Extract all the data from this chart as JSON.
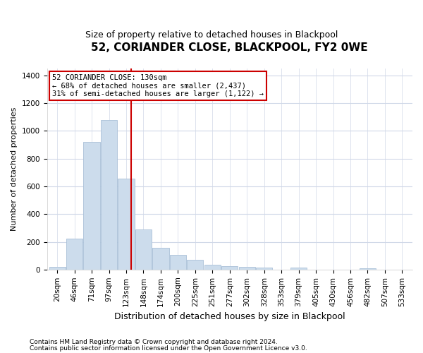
{
  "title": "52, CORIANDER CLOSE, BLACKPOOL, FY2 0WE",
  "subtitle": "Size of property relative to detached houses in Blackpool",
  "xlabel": "Distribution of detached houses by size in Blackpool",
  "ylabel": "Number of detached properties",
  "bar_color": "#ccdcec",
  "bar_edgecolor": "#aac0d8",
  "vline_color": "#cc0000",
  "vline_x": 4,
  "categories": [
    "20sqm",
    "46sqm",
    "71sqm",
    "97sqm",
    "123sqm",
    "148sqm",
    "174sqm",
    "200sqm",
    "225sqm",
    "251sqm",
    "277sqm",
    "302sqm",
    "328sqm",
    "353sqm",
    "379sqm",
    "405sqm",
    "430sqm",
    "456sqm",
    "482sqm",
    "507sqm",
    "533sqm"
  ],
  "values": [
    20,
    225,
    920,
    1080,
    655,
    290,
    155,
    105,
    70,
    35,
    25,
    20,
    15,
    0,
    15,
    0,
    0,
    0,
    10,
    0,
    0
  ],
  "annotation_title": "52 CORIANDER CLOSE: 130sqm",
  "annotation_line1": "← 68% of detached houses are smaller (2,437)",
  "annotation_line2": "31% of semi-detached houses are larger (1,122) →",
  "annotation_box_color": "#ffffff",
  "annotation_box_edgecolor": "#cc0000",
  "footer1": "Contains HM Land Registry data © Crown copyright and database right 2024.",
  "footer2": "Contains public sector information licensed under the Open Government Licence v3.0.",
  "ylim": [
    0,
    1450
  ],
  "background_color": "#ffffff",
  "grid_color": "#d0d8e8",
  "title_fontsize": 11,
  "subtitle_fontsize": 9,
  "ylabel_fontsize": 8,
  "xlabel_fontsize": 9,
  "tick_fontsize": 7.5,
  "footer_fontsize": 6.5
}
